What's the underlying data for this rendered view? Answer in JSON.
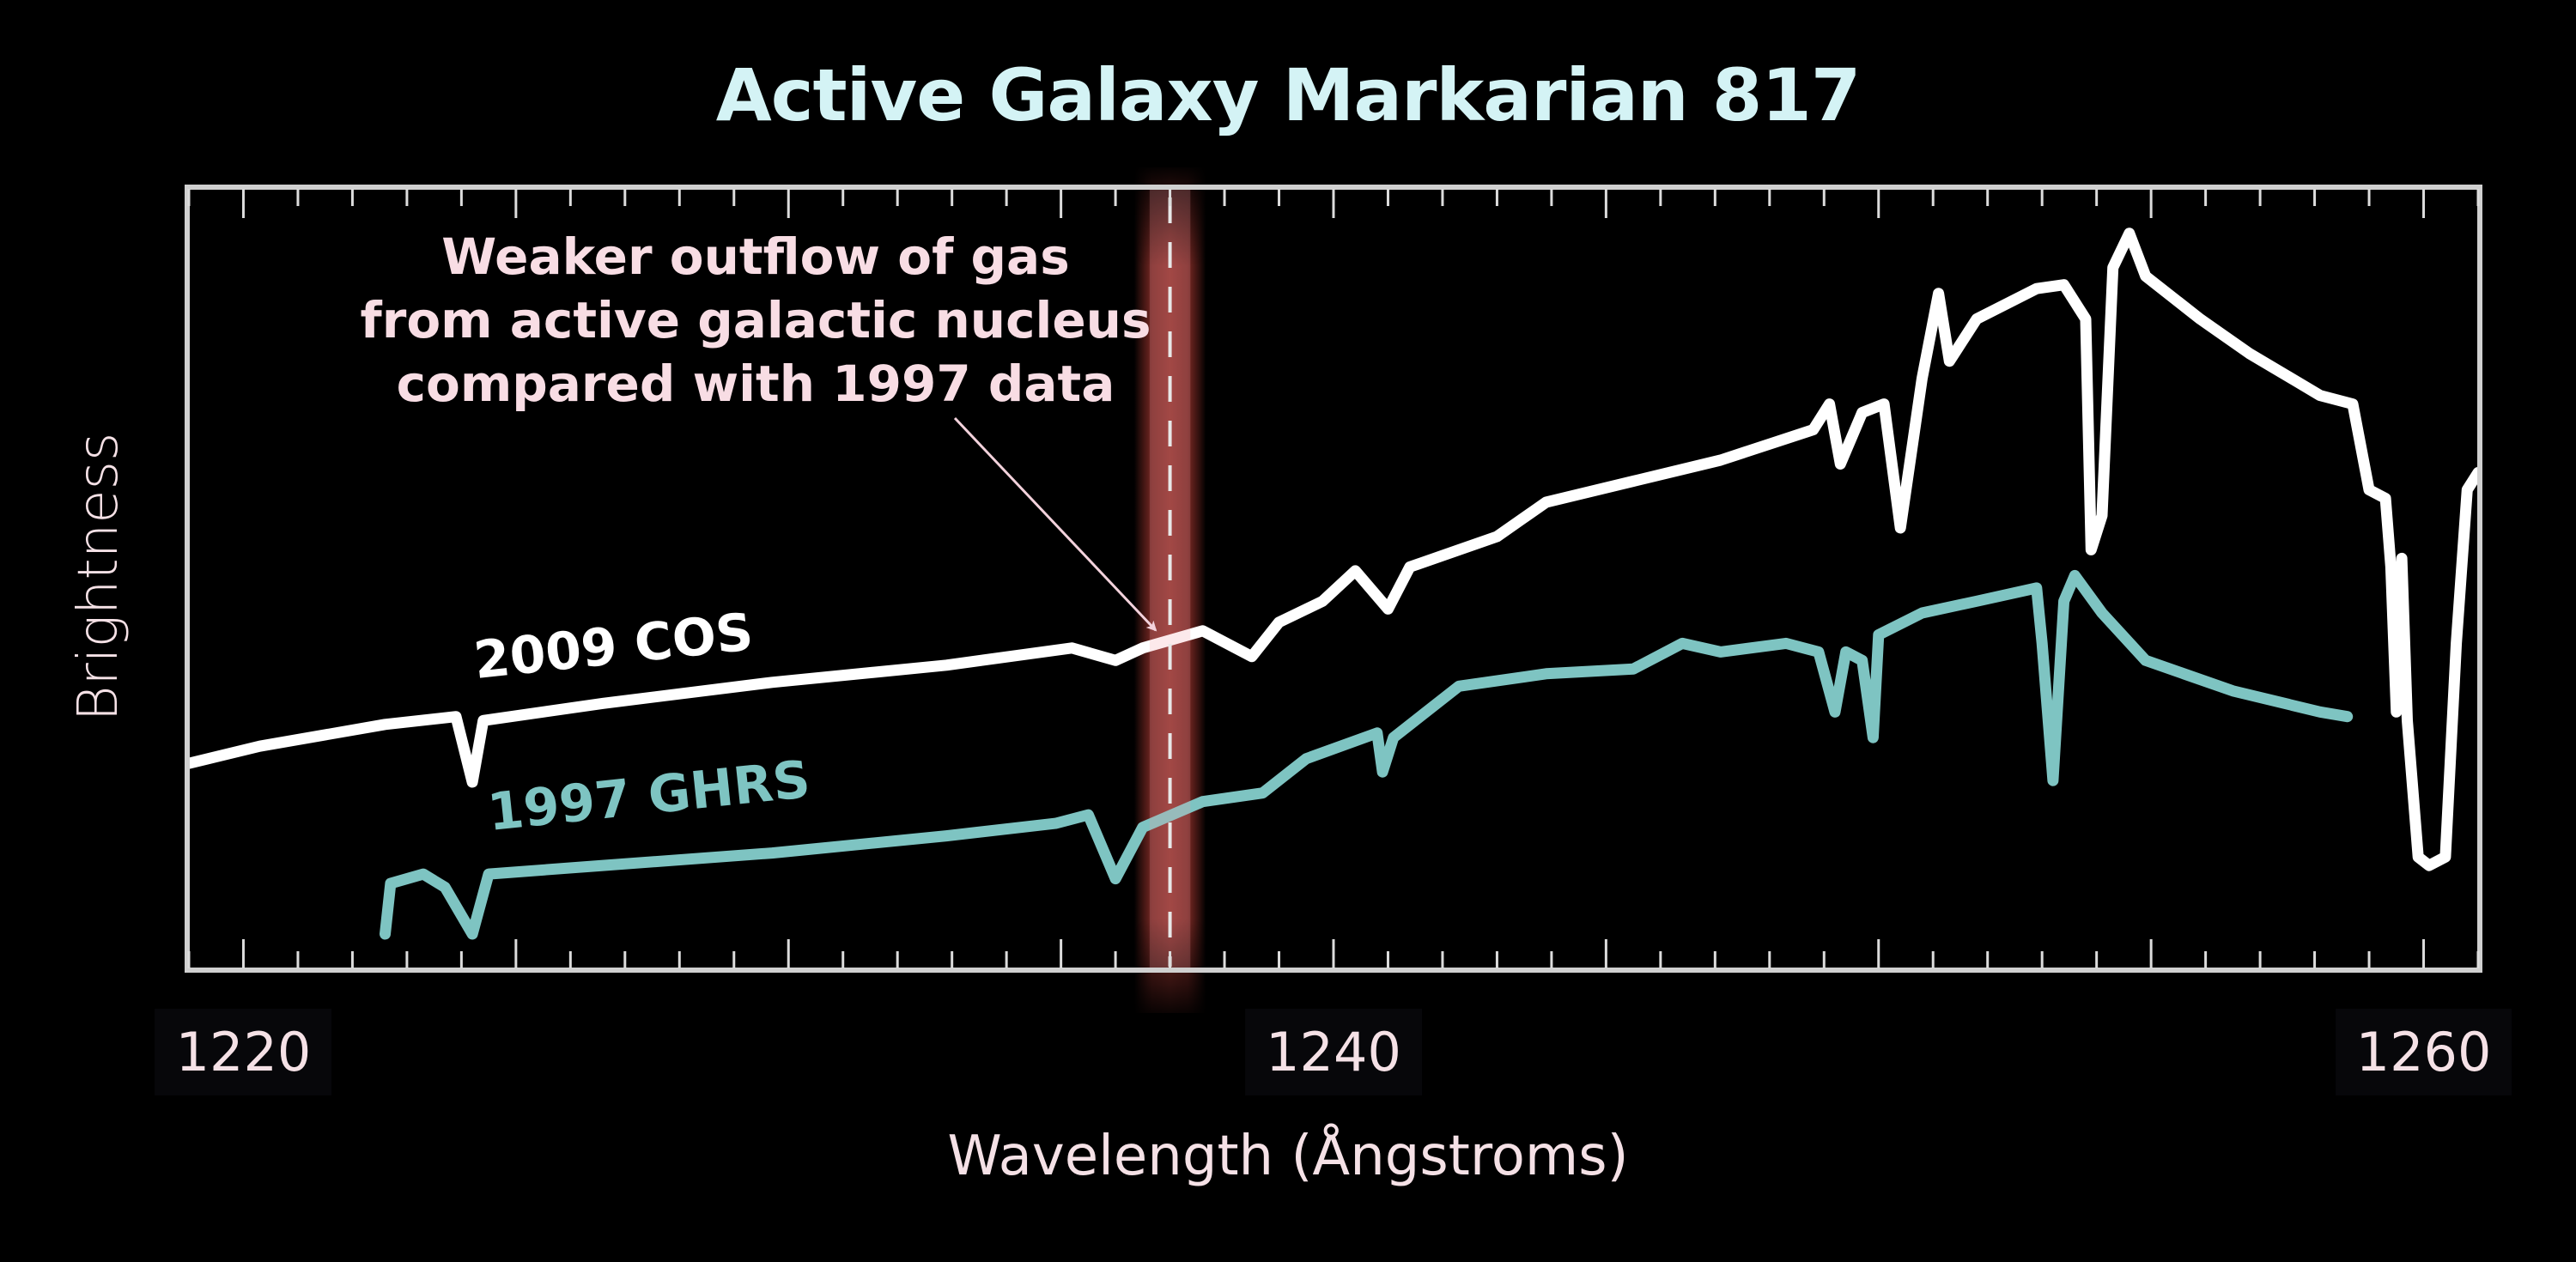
{
  "chart_data": {
    "type": "line",
    "title": "Active Galaxy Markarian 817",
    "xlabel": "Wavelength (Ångstroms)",
    "ylabel": "Brightness",
    "xlim": [
      1219.0,
      1261.0
    ],
    "ylim": [
      0,
      100
    ],
    "xticks": [
      1220,
      1240,
      1260
    ],
    "x_minor_tick_step": 1,
    "grid": false,
    "highlight": {
      "center": 1237.0,
      "width": 1.0,
      "color": "#b23a32",
      "annotation": [
        "Weaker outflow of gas",
        "from active galactic nucleus",
        "compared with 1997 data"
      ],
      "arrow_target": [
        1236.8,
        42.5
      ]
    },
    "series": [
      {
        "name": "2009 COS",
        "color": "#ffffff",
        "x": [
          1219.0,
          1220.3,
          1222.6,
          1223.9,
          1224.2,
          1224.4,
          1226.6,
          1229.7,
          1232.9,
          1235.2,
          1236.0,
          1236.5,
          1237.6,
          1238.5,
          1239.0,
          1239.8,
          1240.4,
          1241.0,
          1241.4,
          1243.0,
          1243.9,
          1245.5,
          1247.1,
          1248.8,
          1249.1,
          1249.3,
          1249.7,
          1250.1,
          1250.4,
          1250.8,
          1251.1,
          1251.3,
          1251.8,
          1252.9,
          1253.4,
          1253.8,
          1253.9,
          1254.1,
          1254.3,
          1254.6,
          1254.9,
          1255.9,
          1256.8,
          1258.1,
          1258.7,
          1259.0,
          1259.3,
          1259.4,
          1259.5,
          1259.6,
          1259.7,
          1259.9,
          1260.1,
          1260.4,
          1260.6,
          1260.8,
          1261.0
        ],
        "values": [
          26.3,
          28.5,
          31.3,
          32.3,
          23.9,
          31.8,
          34.0,
          36.7,
          38.9,
          41.1,
          39.5,
          41.1,
          43.3,
          40.0,
          44.4,
          47.1,
          51.0,
          46.1,
          51.5,
          55.4,
          59.8,
          62.5,
          65.2,
          69.1,
          72.4,
          64.7,
          71.3,
          72.4,
          56.5,
          75.7,
          86.6,
          77.9,
          83.3,
          87.2,
          87.7,
          83.3,
          53.7,
          58.1,
          89.9,
          94.3,
          88.8,
          83.3,
          78.9,
          73.5,
          72.4,
          61.4,
          60.3,
          51.5,
          32.9,
          52.6,
          31.8,
          14.3,
          13.2,
          14.3,
          41.7,
          61.4,
          63.6
        ]
      },
      {
        "name": "1997 GHRS",
        "color": "#7ec4c2",
        "x": [
          1222.6,
          1222.7,
          1223.3,
          1223.7,
          1224.2,
          1224.5,
          1226.6,
          1229.7,
          1232.9,
          1234.9,
          1235.5,
          1236.0,
          1236.5,
          1237.6,
          1238.7,
          1239.5,
          1240.8,
          1240.9,
          1241.1,
          1242.3,
          1243.9,
          1245.5,
          1246.4,
          1247.1,
          1248.3,
          1248.9,
          1249.2,
          1249.4,
          1249.7,
          1249.9,
          1250.0,
          1250.8,
          1251.8,
          1252.9,
          1253.0,
          1253.2,
          1253.4,
          1253.6,
          1254.1,
          1254.9,
          1256.5,
          1258.1,
          1258.6
        ],
        "values": [
          4.4,
          10.9,
          12.1,
          10.4,
          4.4,
          12.1,
          13.2,
          14.8,
          17.0,
          18.6,
          19.7,
          11.5,
          18.1,
          21.4,
          22.5,
          26.9,
          30.2,
          25.2,
          29.6,
          36.2,
          37.8,
          38.4,
          41.7,
          40.6,
          41.7,
          40.6,
          32.9,
          40.6,
          39.5,
          29.6,
          42.8,
          45.6,
          47.1,
          48.8,
          41.7,
          24.1,
          47.1,
          50.4,
          45.6,
          39.5,
          35.6,
          32.9,
          32.3
        ]
      }
    ],
    "frame_color": "#d0d0d0",
    "background": "#000000"
  }
}
